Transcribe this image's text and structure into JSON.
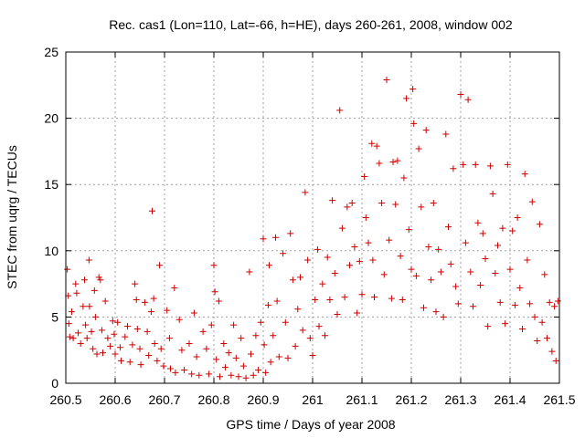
{
  "chart_data": {
    "type": "scatter",
    "title": "Rec. cas1 (Lon=110, Lat=-66, h=HE), days 260-261, 2008, window 002",
    "xlabel": "GPS time / Days of year 2008",
    "ylabel": "STEC from uqrg / TECUs",
    "xlim": [
      260.5,
      261.5
    ],
    "ylim": [
      0,
      25
    ],
    "xticks": [
      260.5,
      260.6,
      260.7,
      260.8,
      260.9,
      261,
      261.1,
      261.2,
      261.3,
      261.4,
      261.5
    ],
    "xtick_labels": [
      "260.5",
      "260.6",
      "260.7",
      "260.8",
      "260.9",
      "261",
      "261.1",
      "261.2",
      "261.3",
      "261.4",
      "261.5"
    ],
    "yticks": [
      0,
      5,
      10,
      15,
      20,
      25
    ],
    "ytick_labels": [
      "0",
      "5",
      "10",
      "15",
      "20",
      "25"
    ],
    "grid": true,
    "legend": "none",
    "marker": "plus",
    "color": "#cc0000",
    "points": [
      [
        260.503,
        8.6
      ],
      [
        260.505,
        6.6
      ],
      [
        260.506,
        4.5
      ],
      [
        260.508,
        3.5
      ],
      [
        260.512,
        5.4
      ],
      [
        260.515,
        3.4
      ],
      [
        260.52,
        7.5
      ],
      [
        260.522,
        6.8
      ],
      [
        260.525,
        3.8
      ],
      [
        260.53,
        3.0
      ],
      [
        260.535,
        5.8
      ],
      [
        260.538,
        7.8
      ],
      [
        260.54,
        4.4
      ],
      [
        260.543,
        3.4
      ],
      [
        260.547,
        9.3
      ],
      [
        260.548,
        5.8
      ],
      [
        260.552,
        3.9
      ],
      [
        260.555,
        2.6
      ],
      [
        260.558,
        7.0
      ],
      [
        260.56,
        5.0
      ],
      [
        260.563,
        2.2
      ],
      [
        260.567,
        8.0
      ],
      [
        260.57,
        7.8
      ],
      [
        260.573,
        4.0
      ],
      [
        260.575,
        2.3
      ],
      [
        260.58,
        6.2
      ],
      [
        260.585,
        3.4
      ],
      [
        260.59,
        2.8
      ],
      [
        260.595,
        4.7
      ],
      [
        260.598,
        3.7
      ],
      [
        260.6,
        2.2
      ],
      [
        260.605,
        4.6
      ],
      [
        260.61,
        2.7
      ],
      [
        260.612,
        1.7
      ],
      [
        260.62,
        3.5
      ],
      [
        260.625,
        4.3
      ],
      [
        260.63,
        1.6
      ],
      [
        260.635,
        2.9
      ],
      [
        260.64,
        7.5
      ],
      [
        260.643,
        6.3
      ],
      [
        260.645,
        4.1
      ],
      [
        260.65,
        2.6
      ],
      [
        260.652,
        1.4
      ],
      [
        260.66,
        6.1
      ],
      [
        260.665,
        3.9
      ],
      [
        260.668,
        2.1
      ],
      [
        260.673,
        5.4
      ],
      [
        260.675,
        13.0
      ],
      [
        260.678,
        6.4
      ],
      [
        260.68,
        3.0
      ],
      [
        260.685,
        1.7
      ],
      [
        260.69,
        8.9
      ],
      [
        260.693,
        2.6
      ],
      [
        260.698,
        1.3
      ],
      [
        260.705,
        5.5
      ],
      [
        260.71,
        3.4
      ],
      [
        260.712,
        1.1
      ],
      [
        260.72,
        7.2
      ],
      [
        260.722,
        0.8
      ],
      [
        260.73,
        4.8
      ],
      [
        260.735,
        2.5
      ],
      [
        260.74,
        1.0
      ],
      [
        260.75,
        3.0
      ],
      [
        260.755,
        0.7
      ],
      [
        260.76,
        5.3
      ],
      [
        260.765,
        2.0
      ],
      [
        260.77,
        0.6
      ],
      [
        260.778,
        3.9
      ],
      [
        260.785,
        2.6
      ],
      [
        260.79,
        0.7
      ],
      [
        260.795,
        4.4
      ],
      [
        260.8,
        8.9
      ],
      [
        260.802,
        6.9
      ],
      [
        260.805,
        1.8
      ],
      [
        260.81,
        6.2
      ],
      [
        260.812,
        0.5
      ],
      [
        260.82,
        3.0
      ],
      [
        260.823,
        1.2
      ],
      [
        260.83,
        2.3
      ],
      [
        260.835,
        0.6
      ],
      [
        260.84,
        4.4
      ],
      [
        260.845,
        1.9
      ],
      [
        260.85,
        0.5
      ],
      [
        260.855,
        3.4
      ],
      [
        260.86,
        1.3
      ],
      [
        260.865,
        0.4
      ],
      [
        260.872,
        8.4
      ],
      [
        260.875,
        2.2
      ],
      [
        260.88,
        0.6
      ],
      [
        260.885,
        3.6
      ],
      [
        260.89,
        1.0
      ],
      [
        260.895,
        4.6
      ],
      [
        260.9,
        10.9
      ],
      [
        260.902,
        2.9
      ],
      [
        260.905,
        0.8
      ],
      [
        260.91,
        5.9
      ],
      [
        260.912,
        8.9
      ],
      [
        260.915,
        1.6
      ],
      [
        260.92,
        3.6
      ],
      [
        260.925,
        11.0
      ],
      [
        260.928,
        6.2
      ],
      [
        260.932,
        2.0
      ],
      [
        260.94,
        9.8
      ],
      [
        260.945,
        4.6
      ],
      [
        260.95,
        1.9
      ],
      [
        260.955,
        11.3
      ],
      [
        260.96,
        7.8
      ],
      [
        260.965,
        2.8
      ],
      [
        260.97,
        5.6
      ],
      [
        260.975,
        8.0
      ],
      [
        260.98,
        4.0
      ],
      [
        260.985,
        14.4
      ],
      [
        260.99,
        9.3
      ],
      [
        260.995,
        3.4
      ],
      [
        261.0,
        2.1
      ],
      [
        261.005,
        6.3
      ],
      [
        261.01,
        10.1
      ],
      [
        261.013,
        4.3
      ],
      [
        261.02,
        7.5
      ],
      [
        261.025,
        3.6
      ],
      [
        261.03,
        9.5
      ],
      [
        261.035,
        6.3
      ],
      [
        261.04,
        13.8
      ],
      [
        261.045,
        8.3
      ],
      [
        261.05,
        5.2
      ],
      [
        261.055,
        20.6
      ],
      [
        261.06,
        11.7
      ],
      [
        261.065,
        6.5
      ],
      [
        261.07,
        13.3
      ],
      [
        261.075,
        8.9
      ],
      [
        261.08,
        13.6
      ],
      [
        261.085,
        10.3
      ],
      [
        261.09,
        5.3
      ],
      [
        261.095,
        9.2
      ],
      [
        261.1,
        6.7
      ],
      [
        261.105,
        15.6
      ],
      [
        261.108,
        12.5
      ],
      [
        261.113,
        10.6
      ],
      [
        261.12,
        18.1
      ],
      [
        261.122,
        9.3
      ],
      [
        261.125,
        6.5
      ],
      [
        261.13,
        17.9
      ],
      [
        261.135,
        16.6
      ],
      [
        261.14,
        13.6
      ],
      [
        261.145,
        8.2
      ],
      [
        261.15,
        22.9
      ],
      [
        261.155,
        10.8
      ],
      [
        261.16,
        6.4
      ],
      [
        261.163,
        16.7
      ],
      [
        261.168,
        13.5
      ],
      [
        261.172,
        16.8
      ],
      [
        261.178,
        9.6
      ],
      [
        261.182,
        6.3
      ],
      [
        261.185,
        15.5
      ],
      [
        261.19,
        21.5
      ],
      [
        261.195,
        11.6
      ],
      [
        261.2,
        8.6
      ],
      [
        261.203,
        22.2
      ],
      [
        261.205,
        19.6
      ],
      [
        261.21,
        8.1
      ],
      [
        261.215,
        17.7
      ],
      [
        261.22,
        13.3
      ],
      [
        261.225,
        5.7
      ],
      [
        261.23,
        19.1
      ],
      [
        261.235,
        10.3
      ],
      [
        261.24,
        7.8
      ],
      [
        261.245,
        13.6
      ],
      [
        261.25,
        5.4
      ],
      [
        261.255,
        10.1
      ],
      [
        261.26,
        8.4
      ],
      [
        261.265,
        5.0
      ],
      [
        261.27,
        18.8
      ],
      [
        261.275,
        11.8
      ],
      [
        261.28,
        9.0
      ],
      [
        261.285,
        16.2
      ],
      [
        261.29,
        7.3
      ],
      [
        261.295,
        6.0
      ],
      [
        261.3,
        21.8
      ],
      [
        261.305,
        16.5
      ],
      [
        261.31,
        10.6
      ],
      [
        261.315,
        21.4
      ],
      [
        261.32,
        8.4
      ],
      [
        261.325,
        5.8
      ],
      [
        261.33,
        16.5
      ],
      [
        261.335,
        12.1
      ],
      [
        261.34,
        7.4
      ],
      [
        261.345,
        11.3
      ],
      [
        261.35,
        9.4
      ],
      [
        261.355,
        4.3
      ],
      [
        261.36,
        16.4
      ],
      [
        261.365,
        14.3
      ],
      [
        261.37,
        8.3
      ],
      [
        261.375,
        10.4
      ],
      [
        261.38,
        6.1
      ],
      [
        261.385,
        11.7
      ],
      [
        261.39,
        4.5
      ],
      [
        261.395,
        16.5
      ],
      [
        261.4,
        8.6
      ],
      [
        261.405,
        11.5
      ],
      [
        261.41,
        5.9
      ],
      [
        261.415,
        12.5
      ],
      [
        261.42,
        7.2
      ],
      [
        261.425,
        4.1
      ],
      [
        261.43,
        15.8
      ],
      [
        261.435,
        9.3
      ],
      [
        261.44,
        6.0
      ],
      [
        261.445,
        13.7
      ],
      [
        261.45,
        5.0
      ],
      [
        261.455,
        3.2
      ],
      [
        261.46,
        12.0
      ],
      [
        261.465,
        4.6
      ],
      [
        261.47,
        8.2
      ],
      [
        261.475,
        3.4
      ],
      [
        261.48,
        6.1
      ],
      [
        261.485,
        2.4
      ],
      [
        261.49,
        5.8
      ],
      [
        261.493,
        1.7
      ],
      [
        261.497,
        6.2
      ]
    ]
  }
}
